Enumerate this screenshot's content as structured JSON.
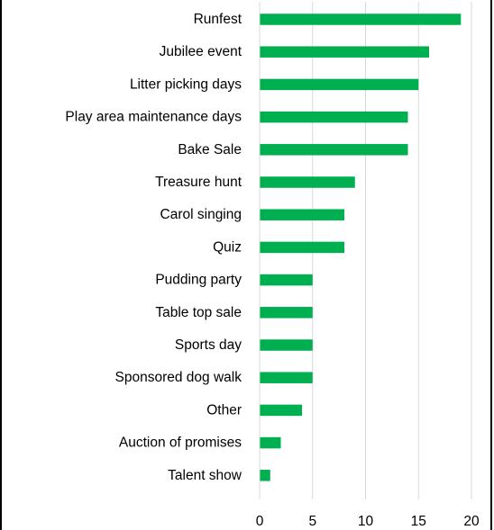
{
  "chart_data": {
    "type": "bar",
    "orientation": "horizontal",
    "title": "",
    "xlabel": "",
    "ylabel": "",
    "categories": [
      "Runfest",
      "Jubilee event",
      "Litter picking days",
      "Play area maintenance days",
      "Bake Sale",
      "Treasure hunt",
      "Carol singing",
      "Quiz",
      "Pudding party",
      "Table top sale",
      "Sports day",
      "Sponsored dog walk",
      "Other",
      "Auction of promises",
      "Talent show"
    ],
    "values": [
      19,
      16,
      15,
      14,
      14,
      9,
      8,
      8,
      5,
      5,
      5,
      5,
      4,
      2,
      1
    ],
    "xlim": [
      0,
      20
    ],
    "xticks": [
      "0",
      "5",
      "10",
      "15",
      "20"
    ],
    "grid": true,
    "legend": "none",
    "bar_color": "#00b050",
    "grid_color": "#d9d9d9"
  }
}
